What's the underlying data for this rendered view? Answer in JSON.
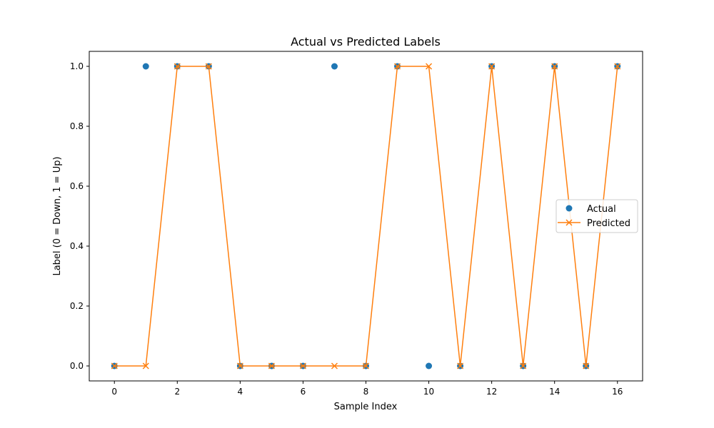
{
  "chart_data": {
    "type": "line",
    "title": "Actual vs Predicted Labels",
    "xlabel": "Sample Index",
    "ylabel": "Label (0 = Down, 1 = Up)",
    "xlim": [
      -0.8,
      16.8
    ],
    "ylim": [
      -0.05,
      1.05
    ],
    "x_ticks": [
      0,
      2,
      4,
      6,
      8,
      10,
      12,
      14,
      16
    ],
    "y_ticks": [
      0.0,
      0.2,
      0.4,
      0.6,
      0.8,
      1.0
    ],
    "x_tick_labels": [
      "0",
      "2",
      "4",
      "6",
      "8",
      "10",
      "12",
      "14",
      "16"
    ],
    "y_tick_labels": [
      "0.0",
      "0.2",
      "0.4",
      "0.6",
      "0.8",
      "1.0"
    ],
    "grid": false,
    "legend_position": "center-right",
    "x": [
      0,
      1,
      2,
      3,
      4,
      5,
      6,
      7,
      8,
      9,
      10,
      11,
      12,
      13,
      14,
      15,
      16
    ],
    "series": [
      {
        "name": "Actual",
        "style": "markers",
        "marker": "circle",
        "color": "#1f77b4",
        "values": [
          0,
          1,
          1,
          1,
          0,
          0,
          0,
          1,
          0,
          1,
          0,
          0,
          1,
          0,
          1,
          0,
          1
        ]
      },
      {
        "name": "Predicted",
        "style": "line-with-markers",
        "marker": "x",
        "color": "#ff7f0e",
        "values": [
          0,
          0,
          1,
          1,
          0,
          0,
          0,
          0,
          0,
          1,
          1,
          0,
          1,
          0,
          1,
          0,
          1
        ]
      }
    ]
  }
}
